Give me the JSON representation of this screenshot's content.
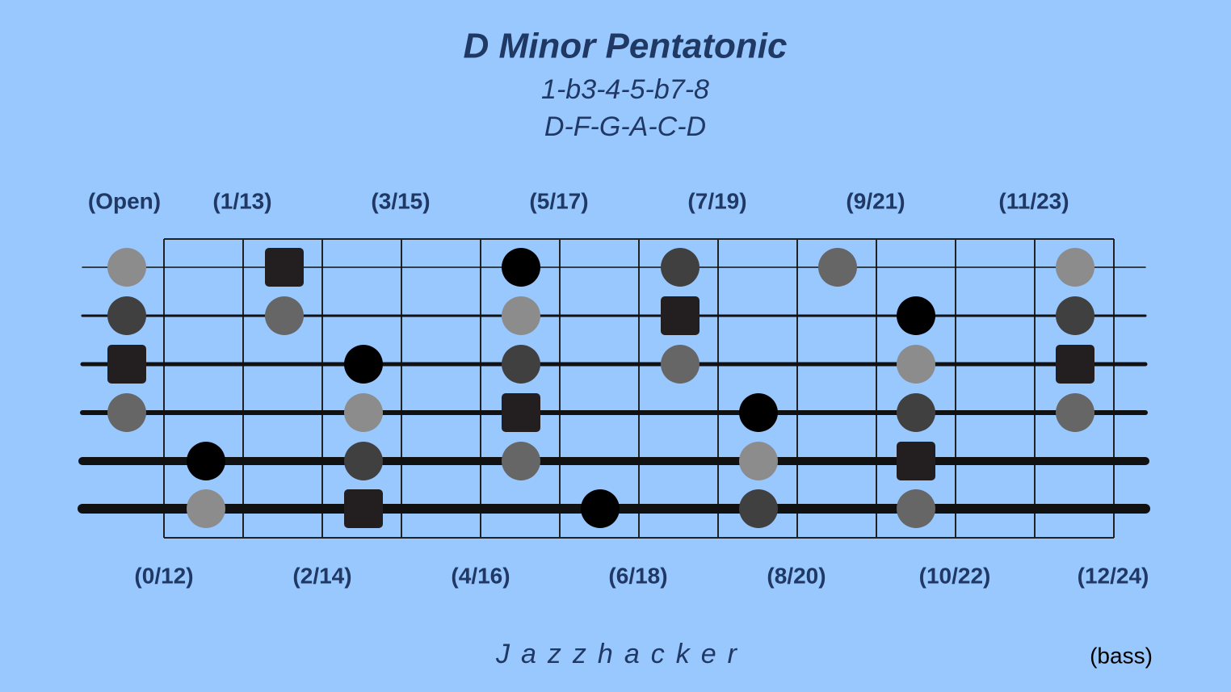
{
  "header": {
    "title": "D Minor Pentatonic",
    "formula": "1-b3-4-5-b7-8",
    "notes": "D-F-G-A-C-D"
  },
  "fret_labels_top": [
    "(Open)",
    "(1/13)",
    "(3/15)",
    "(5/17)",
    "(7/19)",
    "(9/21)",
    "(11/23)"
  ],
  "fret_labels_bottom": [
    "(0/12)",
    "(2/14)",
    "(4/16)",
    "(6/18)",
    "(8/20)",
    "(10/22)",
    "(12/24)"
  ],
  "footer": {
    "brand": "Jazzhacker",
    "instrument": "(bass)"
  }
}
